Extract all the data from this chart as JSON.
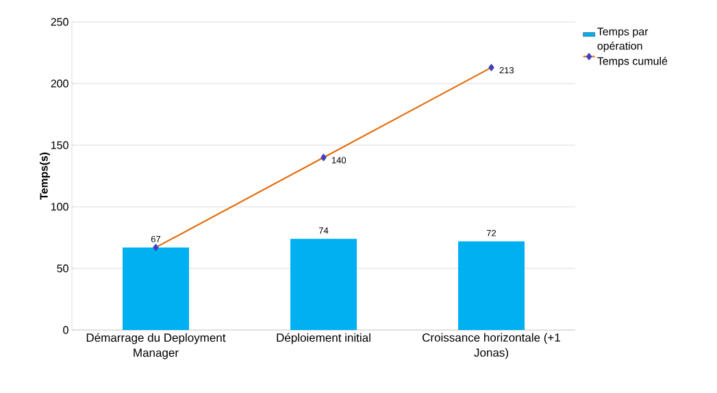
{
  "chart_data": {
    "type": "bar",
    "ylabel": "Temps(s)",
    "categories": [
      "Démarrage du Deployment Manager",
      "Déploiement initial",
      "Croissance horizontale (+1 Jonas)"
    ],
    "series": [
      {
        "name": "Temps par opération",
        "type": "bar",
        "color": "#00b0f0",
        "values": [
          67,
          74,
          72
        ],
        "data_labels": true
      },
      {
        "name": "Temps cumulé",
        "type": "line",
        "color": "#e46c0a",
        "marker": "diamond",
        "values": [
          67,
          140,
          213
        ],
        "value_labels": [
          null,
          "140",
          "213"
        ]
      }
    ],
    "ylim": [
      0,
      250
    ],
    "yticks": [
      0,
      50,
      100,
      150,
      200,
      250
    ],
    "grid": "y",
    "legend": "top right"
  }
}
